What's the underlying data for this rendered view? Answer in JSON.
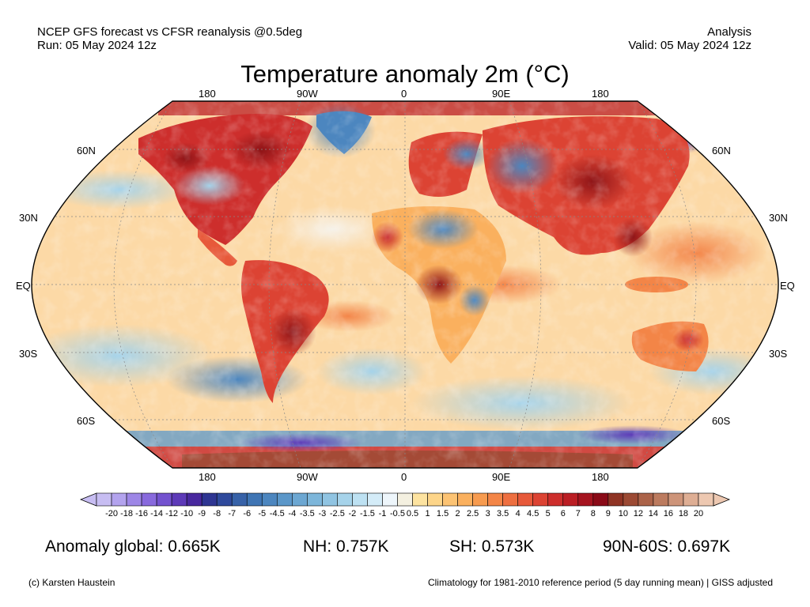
{
  "header": {
    "left_line1": "NCEP GFS forecast vs CFSR reanalysis @0.5deg",
    "left_line2": "Run: 05 May 2024 12z",
    "right_line1": "Analysis",
    "right_line2": "Valid: 05 May 2024 12z"
  },
  "title": "Temperature anomaly 2m (°C)",
  "map": {
    "projection": "robinson",
    "lon_labels_top": [
      "180",
      "90W",
      "0",
      "90E",
      "180"
    ],
    "lon_labels_bottom": [
      "180",
      "90W",
      "0",
      "90E",
      "180"
    ],
    "lat_labels_left": [
      "60N",
      "30N",
      "EQ",
      "30S",
      "60S"
    ],
    "lat_labels_right": [
      "60N",
      "30N",
      "EQ",
      "30S",
      "60S"
    ]
  },
  "colorbar": {
    "tick_labels": [
      "-20",
      "-18",
      "-16",
      "-14",
      "-12",
      "-10",
      "-9",
      "-8",
      "-7",
      "-6",
      "-5",
      "-4.5",
      "-4",
      "-3.5",
      "-3",
      "-2.5",
      "-2",
      "-1.5",
      "-1",
      "-0.5",
      "0.5",
      "1",
      "1.5",
      "2",
      "2.5",
      "3",
      "3.5",
      "4",
      "4.5",
      "5",
      "6",
      "7",
      "8",
      "9",
      "10",
      "12",
      "14",
      "16",
      "18",
      "20"
    ],
    "colors": [
      "#c7bdf2",
      "#b3a3ee",
      "#9d86e6",
      "#8869dd",
      "#7352cf",
      "#5d3ab8",
      "#48289e",
      "#2e3592",
      "#2f4a9c",
      "#3762a8",
      "#3f75b4",
      "#4c86bf",
      "#5b97c9",
      "#6ca7d2",
      "#7db6da",
      "#90c4e2",
      "#a6d3ea",
      "#bde1f2",
      "#d4ecf8",
      "#eef6fb",
      "#f4f0e0",
      "#fde3a0",
      "#fdd589",
      "#fcc373",
      "#fab05e",
      "#f79b4f",
      "#f38547",
      "#ee6f40",
      "#e7593a",
      "#dc4333",
      "#cd2e2c",
      "#bb1e24",
      "#a5141f",
      "#8a0a17",
      "#8f3424",
      "#9c4a34",
      "#ab6349",
      "#bc7b5f",
      "#cd9479",
      "#deae94",
      "#edc8b1"
    ]
  },
  "stats": {
    "global": "Anomaly global: 0.665K",
    "nh": "NH: 0.757K",
    "sh": "SH: 0.573K",
    "arctic": "90N-60S: 0.697K"
  },
  "footer": {
    "credit": "(c) Karsten Haustein",
    "note": "Climatology for 1981-2010 reference period (5 day running mean) | GISS adjusted"
  }
}
